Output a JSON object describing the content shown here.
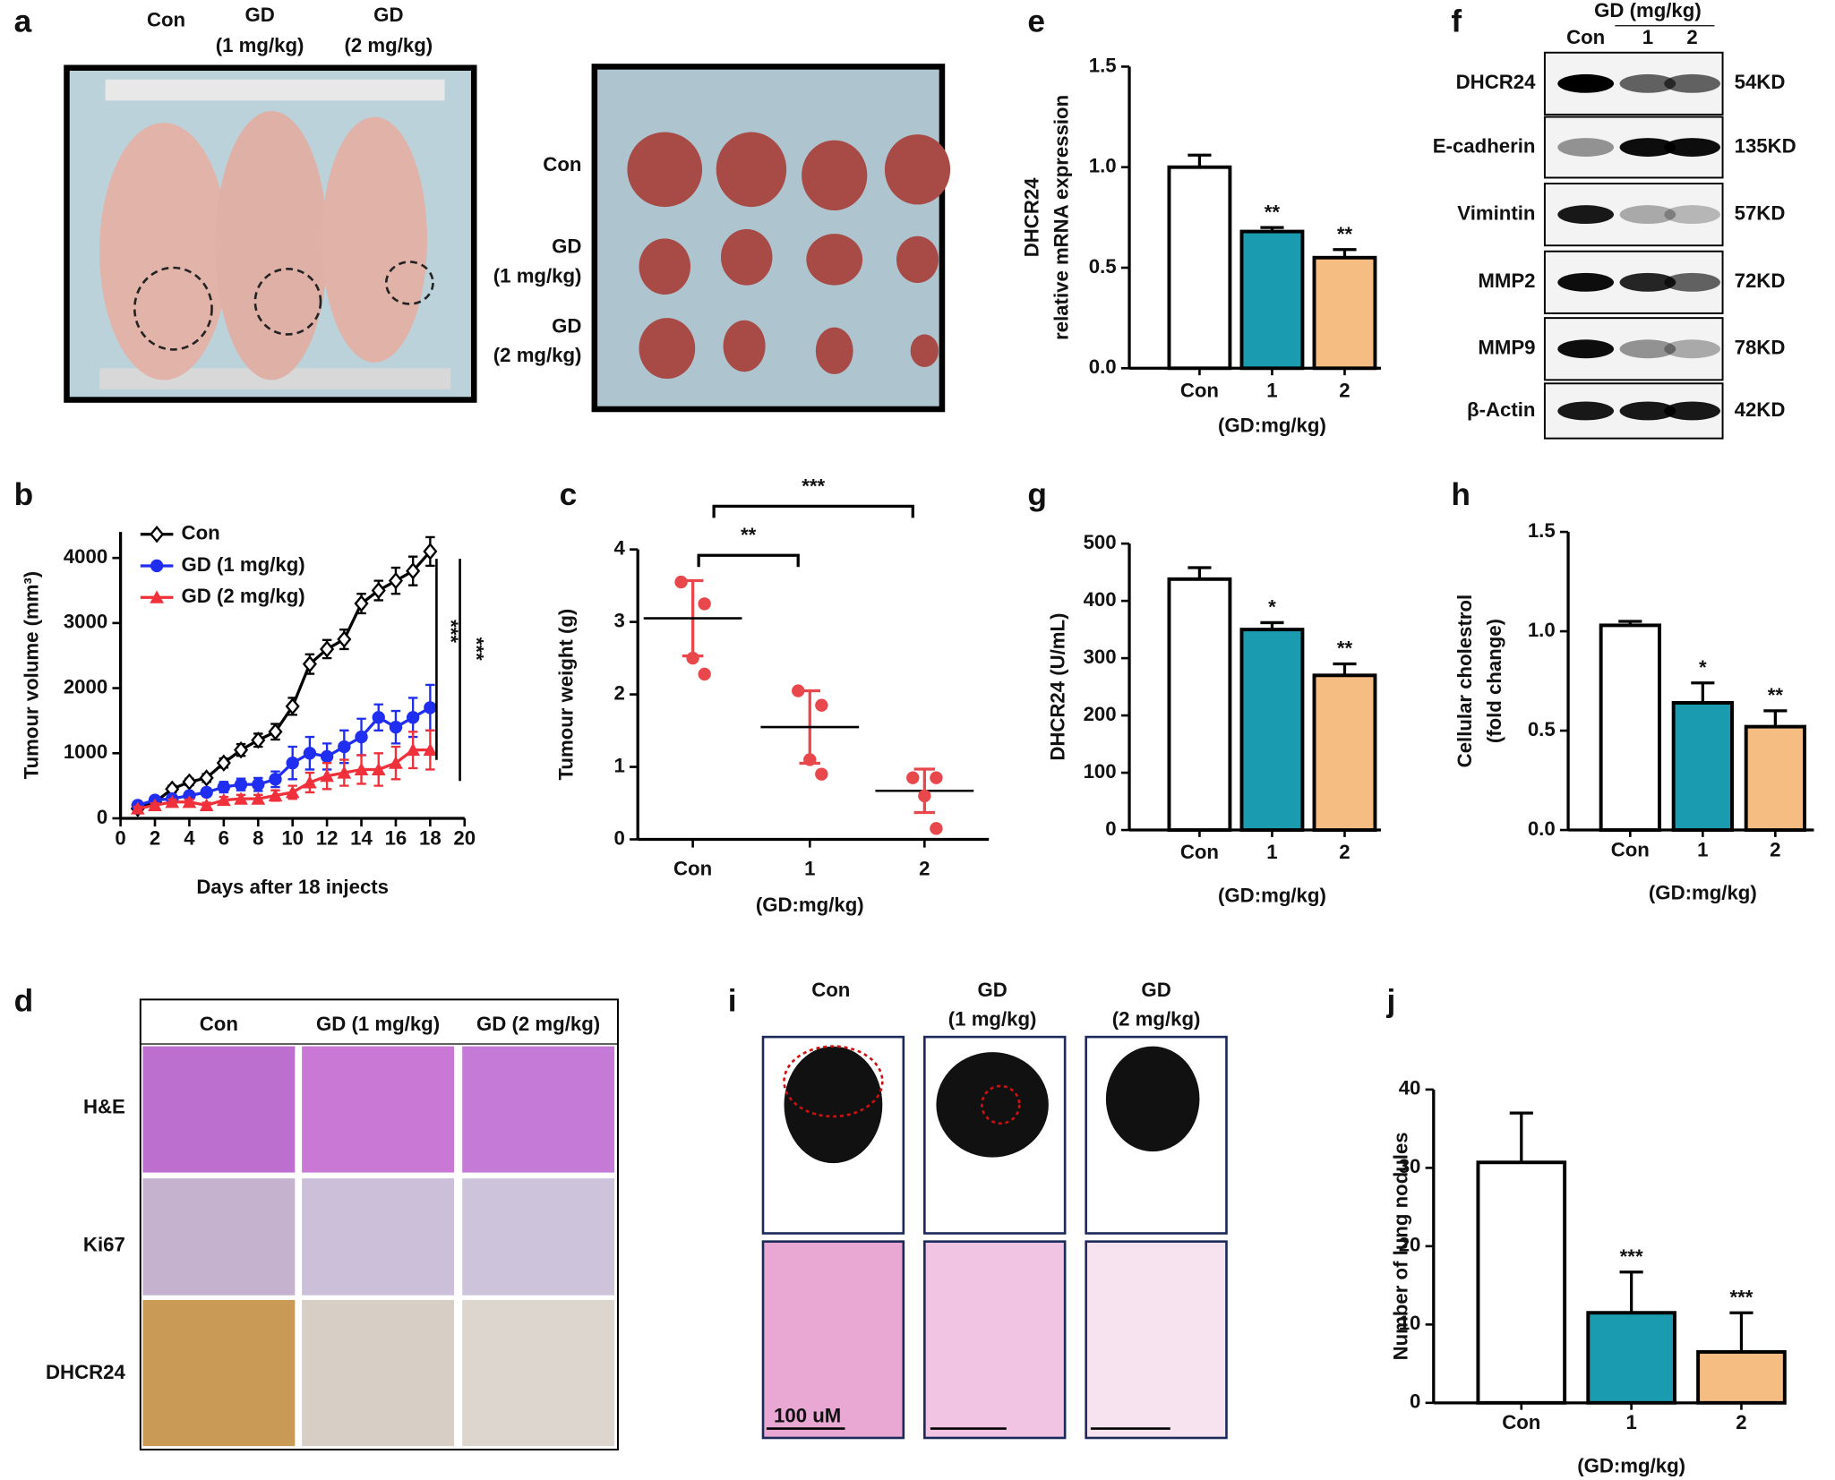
{
  "panel_letters": [
    "a",
    "b",
    "c",
    "d",
    "e",
    "f",
    "g",
    "h",
    "i",
    "j"
  ],
  "panel_a": {
    "top_labels": [
      [
        "Con"
      ],
      [
        "GD",
        "(1 mg/kg)"
      ],
      [
        "GD",
        "(2 mg/kg)"
      ]
    ],
    "row_labels": [
      [
        "Con"
      ],
      [
        "GD",
        "(1 mg/kg)"
      ],
      [
        "GD",
        "(2 mg/kg)"
      ]
    ]
  },
  "panel_d": {
    "columns": [
      "Con",
      "GD (1 mg/kg)",
      "GD (2 mg/kg)"
    ],
    "rows": [
      "H&E",
      "Ki67",
      "DHCR24"
    ]
  },
  "panel_f": {
    "header": "GD (mg/kg)",
    "lanes": [
      "Con",
      "1",
      "2"
    ],
    "rows": [
      {
        "name": "DHCR24",
        "size": "54KD"
      },
      {
        "name": "E-cadherin",
        "size": "135KD"
      },
      {
        "name": "Vimintin",
        "size": "57KD"
      },
      {
        "name": "MMP2",
        "size": "72KD"
      },
      {
        "name": "MMP9",
        "size": "78KD"
      },
      {
        "name": "β-Actin",
        "size": "42KD"
      }
    ]
  },
  "panel_i": {
    "columns": [
      [
        "Con"
      ],
      [
        "GD",
        "(1 mg/kg)"
      ],
      [
        "GD",
        "(2 mg/kg)"
      ]
    ],
    "scale_bar": "100 uM"
  },
  "chart_data": [
    {
      "type": "line",
      "xlabel": "Days after 18 injects",
      "ylabel": "Tumour volume (mm³)",
      "x": [
        1,
        2,
        3,
        4,
        5,
        6,
        7,
        8,
        9,
        10,
        11,
        12,
        13,
        14,
        15,
        16,
        17,
        18
      ],
      "xlim": [
        0,
        20
      ],
      "xticks": [
        0,
        2,
        4,
        6,
        8,
        10,
        12,
        14,
        16,
        18,
        20
      ],
      "ylim": [
        0,
        4400
      ],
      "yticks": [
        0,
        1000,
        2000,
        3000,
        4000
      ],
      "legend": "upper left",
      "significance": [
        "***",
        "***"
      ],
      "series": [
        {
          "name": "Con",
          "color": "#000000",
          "marker": "diamond",
          "values": [
            150,
            250,
            450,
            560,
            620,
            850,
            1050,
            1200,
            1330,
            1720,
            2370,
            2600,
            2750,
            3300,
            3500,
            3650,
            3800,
            4100
          ],
          "errors": [
            40,
            40,
            50,
            50,
            60,
            70,
            90,
            100,
            120,
            130,
            150,
            140,
            150,
            150,
            150,
            200,
            220,
            220
          ]
        },
        {
          "name": "GD (1 mg/kg)",
          "color": "#1f2ef0",
          "marker": "circle",
          "values": [
            200,
            280,
            300,
            350,
            400,
            480,
            520,
            520,
            600,
            850,
            1000,
            950,
            1100,
            1250,
            1550,
            1400,
            1550,
            1700
          ],
          "errors": [
            40,
            40,
            50,
            50,
            60,
            80,
            90,
            100,
            120,
            250,
            250,
            200,
            250,
            280,
            200,
            250,
            300,
            350
          ]
        },
        {
          "name": "GD (2 mg/kg)",
          "color": "#f0303a",
          "marker": "triangle",
          "values": [
            150,
            200,
            250,
            250,
            200,
            280,
            300,
            300,
            350,
            400,
            550,
            650,
            700,
            750,
            750,
            850,
            1050,
            1050
          ],
          "errors": [
            30,
            30,
            40,
            40,
            40,
            50,
            60,
            60,
            80,
            100,
            150,
            200,
            200,
            220,
            250,
            250,
            280,
            300
          ]
        }
      ]
    },
    {
      "type": "scatter",
      "ylabel": "Tumour weight (g)",
      "xlabel": "(GD:mg/kg)",
      "categories": [
        "Con",
        "1",
        "2"
      ],
      "points": [
        [
          3.55,
          3.25,
          2.5,
          2.28
        ],
        [
          2.05,
          1.85,
          1.1,
          0.9
        ],
        [
          0.85,
          0.85,
          0.6,
          0.15
        ]
      ],
      "means": [
        3.05,
        1.55,
        0.67
      ],
      "sds": [
        0.52,
        0.5,
        0.3
      ],
      "ylim": [
        0,
        4
      ],
      "yticks": [
        0,
        1,
        2,
        3,
        4
      ],
      "color": "#e8474c",
      "comparisons": [
        {
          "pair": [
            "Con",
            "1"
          ],
          "label": "**"
        },
        {
          "pair": [
            "Con",
            "2"
          ],
          "label": "***"
        }
      ]
    },
    {
      "type": "bar",
      "ylabel": [
        "DHCR24",
        "relative mRNA expression"
      ],
      "xlabel": "(GD:mg/kg)",
      "categories": [
        "Con",
        "1",
        "2"
      ],
      "values": [
        1.0,
        0.68,
        0.55
      ],
      "errors": [
        0.06,
        0.02,
        0.04
      ],
      "annotations": [
        null,
        "**",
        "**"
      ],
      "colors": [
        "#ffffff",
        "#1a9bb0",
        "#f6bd82"
      ],
      "ylim": [
        0,
        1.5
      ],
      "yticks": [
        {
          "value": 0,
          "label": "0.0"
        },
        {
          "value": 0.5,
          "label": "0.5"
        },
        {
          "value": 1,
          "label": "1.0"
        },
        {
          "value": 1.5,
          "label": "1.5"
        }
      ]
    },
    {
      "type": "bar",
      "ylabel": [
        "DHCR24 (U/mL)"
      ],
      "xlabel": "(GD:mg/kg)",
      "categories": [
        "Con",
        "1",
        "2"
      ],
      "values": [
        438,
        350,
        270
      ],
      "errors": [
        20,
        12,
        20
      ],
      "annotations": [
        null,
        "*",
        "**"
      ],
      "colors": [
        "#ffffff",
        "#1a9bb0",
        "#f6bd82"
      ],
      "ylim": [
        0,
        500
      ],
      "yticks": [
        0,
        100,
        200,
        300,
        400,
        500
      ]
    },
    {
      "type": "bar",
      "ylabel": [
        "Cellular cholestrol",
        "(fold change)"
      ],
      "xlabel": "(GD:mg/kg)",
      "categories": [
        "Con",
        "1",
        "2"
      ],
      "values": [
        1.03,
        0.64,
        0.52
      ],
      "errors": [
        0.02,
        0.1,
        0.08
      ],
      "annotations": [
        null,
        "*",
        "**"
      ],
      "colors": [
        "#ffffff",
        "#1a9bb0",
        "#f6bd82"
      ],
      "ylim": [
        0,
        1.5
      ],
      "yticks": [
        {
          "value": 0,
          "label": "0.0"
        },
        {
          "value": 0.5,
          "label": "0.5"
        },
        {
          "value": 1,
          "label": "1.0"
        },
        {
          "value": 1.5,
          "label": "1.5"
        }
      ]
    },
    {
      "type": "bar",
      "ylabel": [
        "Number of lung nodules"
      ],
      "xlabel": "(GD:mg/kg)",
      "categories": [
        "Con",
        "1",
        "2"
      ],
      "values": [
        30.7,
        11.5,
        6.5
      ],
      "errors": [
        6.3,
        5.2,
        5
      ],
      "annotations": [
        null,
        "***",
        "***"
      ],
      "colors": [
        "#ffffff",
        "#1a9bb0",
        "#f6bd82"
      ],
      "ylim": [
        0,
        40
      ],
      "yticks": [
        0,
        10,
        20,
        30,
        40
      ]
    }
  ]
}
